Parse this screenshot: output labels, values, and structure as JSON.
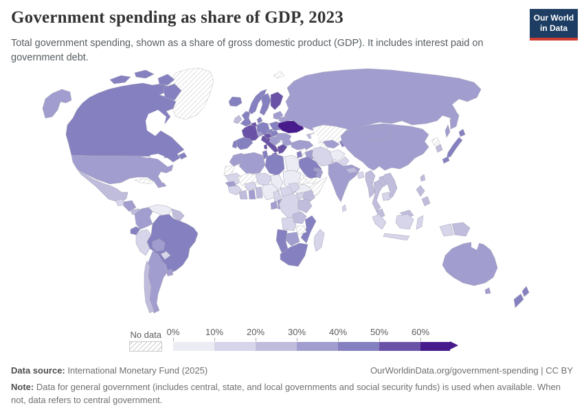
{
  "header": {
    "title": "Government spending as share of GDP, 2023",
    "subtitle": "Total government spending, shown as a share of gross domestic product (GDP). It includes interest paid on government debt.",
    "logo": {
      "line1": "Our World",
      "line2": "in Data",
      "bg_color": "#1d3d63",
      "bar_color": "#cf3d32"
    }
  },
  "legend": {
    "no_data_label": "No data",
    "ticks": [
      "0%",
      "10%",
      "20%",
      "30%",
      "40%",
      "50%",
      "60%"
    ]
  },
  "chart_data": {
    "type": "heatmap",
    "subtype": "world-choropleth",
    "title": "Government spending as share of GDP, 2023",
    "unit": "% of GDP",
    "year": 2023,
    "bin_order": [
      "0-10",
      "10-20",
      "20-30",
      "30-40",
      "40-50",
      "50-60",
      "60+"
    ],
    "bin_colors": {
      "0-10": "#ececf4",
      "10-20": "#d7d5e9",
      "20-30": "#bfbcdc",
      "30-40": "#a19dce",
      "40-50": "#8580bf",
      "50-60": "#6a53a6",
      "60+": "#471b8c"
    },
    "no_data_countries": [
      "Greenland",
      "Svalbard",
      "Cuba",
      "Kazakhstan",
      "Turkmenistan",
      "Syria",
      "Yemen",
      "North Korea",
      "Western Sahara",
      "Mali",
      "Eritrea",
      "Somalia",
      "Zimbabwe"
    ],
    "countries": {
      "ukraine": [
        "60+",
        63
      ],
      "france": [
        "50-60",
        57
      ],
      "finland": [
        "50-60",
        56
      ],
      "belgium": [
        "50-60",
        55
      ],
      "italy": [
        "50-60",
        54
      ],
      "austria": [
        "50-60",
        52
      ],
      "greece": [
        "50-60",
        52
      ],
      "germany": [
        "40-50",
        48
      ],
      "sweden": [
        "40-50",
        48
      ],
      "hungary": [
        "40-50",
        48
      ],
      "norway": [
        "40-50",
        46
      ],
      "denmark": [
        "40-50",
        46
      ],
      "poland": [
        "40-50",
        46
      ],
      "iceland": [
        "40-50",
        46
      ],
      "uk": [
        "40-50",
        45
      ],
      "spain": [
        "40-50",
        45
      ],
      "czechia": [
        "40-50",
        45
      ],
      "portugal": [
        "40-50",
        43
      ],
      "canada": [
        "40-50",
        44
      ],
      "japan": [
        "40-50",
        43
      ],
      "brazil": [
        "40-50",
        43
      ],
      "ecuador": [
        "40-50",
        44
      ],
      "saudi_arabia": [
        "40-50",
        41
      ],
      "libya": [
        "40-50",
        45
      ],
      "tunisia": [
        "40-50",
        44
      ],
      "mozambique": [
        "40-50",
        42
      ],
      "namibia": [
        "40-50",
        42
      ],
      "south_africa": [
        "40-50",
        41
      ],
      "new_zealand": [
        "40-50",
        44
      ],
      "israel": [
        "40-50",
        44
      ],
      "kyrgyzstan": [
        "40-50",
        42
      ],
      "united_states": [
        "30-40",
        37
      ],
      "russia": [
        "30-40",
        36
      ],
      "china": [
        "30-40",
        33
      ],
      "mongolia": [
        "30-40",
        37
      ],
      "australia": [
        "30-40",
        38
      ],
      "india": [
        "30-40",
        30
      ],
      "colombia": [
        "30-40",
        32
      ],
      "argentina": [
        "30-40",
        35
      ],
      "bolivia": [
        "30-40",
        34
      ],
      "uruguay": [
        "30-40",
        33
      ],
      "morocco": [
        "30-40",
        32
      ],
      "algeria": [
        "30-40",
        37
      ],
      "senegal": [
        "30-40",
        31
      ],
      "ghana": [
        "30-40",
        31
      ],
      "iraq": [
        "30-40",
        38
      ],
      "turkey": [
        "30-40",
        33
      ],
      "oman": [
        "30-40",
        34
      ],
      "uae": [
        "30-40",
        31
      ],
      "botswana": [
        "30-40",
        34
      ],
      "congo": [
        "30-40",
        32
      ],
      "gabon": [
        "30-40",
        31
      ],
      "romania": [
        "30-40",
        35
      ],
      "bulgaria": [
        "30-40",
        33
      ],
      "belarus": [
        "30-40",
        34
      ],
      "baltics": [
        "30-40",
        36
      ],
      "balkans": [
        "30-40",
        38
      ],
      "uzbekistan": [
        "30-40",
        33
      ],
      "honduras": [
        "30-40",
        31
      ],
      "dominican_republic": [
        "30-40",
        31
      ],
      "mexico": [
        "20-30",
        27
      ],
      "chile": [
        "20-30",
        26
      ],
      "ireland": [
        "20-30",
        23
      ],
      "switzerland": [
        "30-40",
        32
      ],
      "thailand": [
        "20-30",
        23
      ],
      "myanmar": [
        "20-30",
        22
      ],
      "laos": [
        "20-30",
        21
      ],
      "vietnam": [
        "20-30",
        21
      ],
      "philippines": [
        "20-30",
        24
      ],
      "malaysia": [
        "20-30",
        25
      ],
      "south_korea": [
        "20-30",
        28
      ],
      "taiwan": [
        "20-30",
        21
      ],
      "kenya": [
        "20-30",
        22
      ],
      "tanzania": [
        "20-30",
        21
      ],
      "zambia": [
        "20-30",
        25
      ],
      "ivory_coast": [
        "20-30",
        24
      ],
      "benin": [
        "20-30",
        24
      ],
      "guyanas": [
        "20-30",
        28
      ],
      "caucasus": [
        "20-30",
        25
      ],
      "costa_rica": [
        "20-30",
        25
      ],
      "nepal": [
        "20-30",
        23
      ],
      "iran": [
        "10-20",
        16
      ],
      "pakistan": [
        "10-20",
        19
      ],
      "bangladesh": [
        "10-20",
        14
      ],
      "indonesia": [
        "10-20",
        17
      ],
      "mauritania": [
        "10-20",
        18
      ],
      "guinea": [
        "10-20",
        16
      ],
      "burkina_faso": [
        "10-20",
        18
      ],
      "angola": [
        "10-20",
        17
      ],
      "madagascar": [
        "10-20",
        14
      ],
      "uganda": [
        "10-20",
        16
      ],
      "drc": [
        "10-20",
        13
      ],
      "cameroon": [
        "10-20",
        15
      ],
      "car": [
        "10-20",
        15
      ],
      "south_sudan": [
        "10-20",
        15
      ],
      "sri_lanka": [
        "10-20",
        17
      ],
      "guatemala": [
        "10-20",
        13
      ],
      "peru": [
        "10-20",
        18
      ],
      "paraguay": [
        "10-20",
        18
      ],
      "cambodia": [
        "10-20",
        17
      ],
      "niger": [
        "10-20",
        12
      ],
      "papua_new_guinea": [
        "20-30",
        23
      ],
      "sudan": [
        "0-10",
        6
      ],
      "chad": [
        "0-10",
        9
      ],
      "nigeria": [
        "0-10",
        9
      ],
      "ethiopia": [
        "0-10",
        9
      ],
      "egypt": [
        "0-10",
        10
      ],
      "afghanistan": [
        "0-10",
        8
      ],
      "venezuela": [
        "0-10",
        8
      ],
      "greenland": [
        "no-data",
        null
      ],
      "svalbard": [
        "no-data",
        null
      ],
      "cuba": [
        "no-data",
        null
      ],
      "kazakhstan": [
        "no-data",
        null
      ],
      "turkmenistan": [
        "no-data",
        null
      ],
      "syria": [
        "no-data",
        null
      ],
      "yemen": [
        "no-data",
        null
      ],
      "north_korea": [
        "no-data",
        null
      ],
      "western_sahara": [
        "no-data",
        null
      ],
      "mali": [
        "no-data",
        null
      ],
      "eritrea": [
        "no-data",
        null
      ],
      "somalia": [
        "no-data",
        null
      ],
      "zimbabwe": [
        "no-data",
        null
      ]
    }
  },
  "footer": {
    "source_label": "Data source:",
    "source_text": "International Monetary Fund (2025)",
    "rights_text": "OurWorldinData.org/government-spending | CC BY",
    "note_label": "Note:",
    "note_text": "Data for general government (includes central, state, and local governments and social security funds) is used when available. When not, data refers to central government."
  }
}
